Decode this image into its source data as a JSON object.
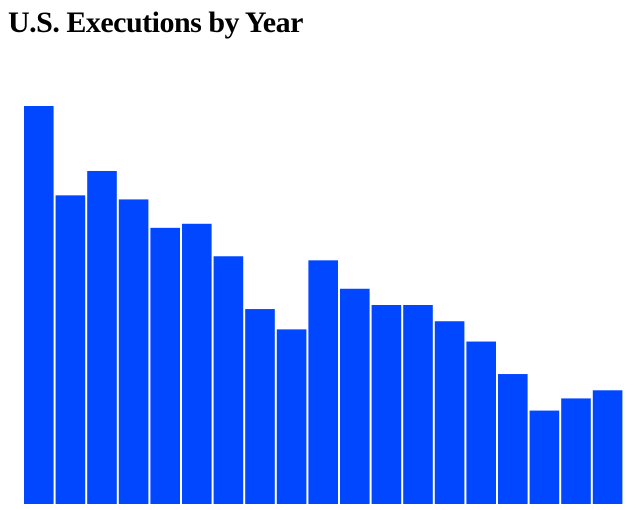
{
  "title": "U.S. Executions by Year",
  "colors": {
    "bar": "#0047FF",
    "background": "#FFFFFF",
    "title": "#000000"
  },
  "chart_data": {
    "type": "bar",
    "title": "U.S. Executions by Year",
    "xlabel": "",
    "ylabel": "",
    "grid": false,
    "legend": "none",
    "axes_visible": false,
    "ylim": [
      0,
      98
    ],
    "values": [
      98,
      76,
      82,
      75,
      68,
      69,
      61,
      48,
      43,
      60,
      53,
      49,
      49,
      45,
      40,
      32,
      23,
      26,
      28
    ]
  }
}
